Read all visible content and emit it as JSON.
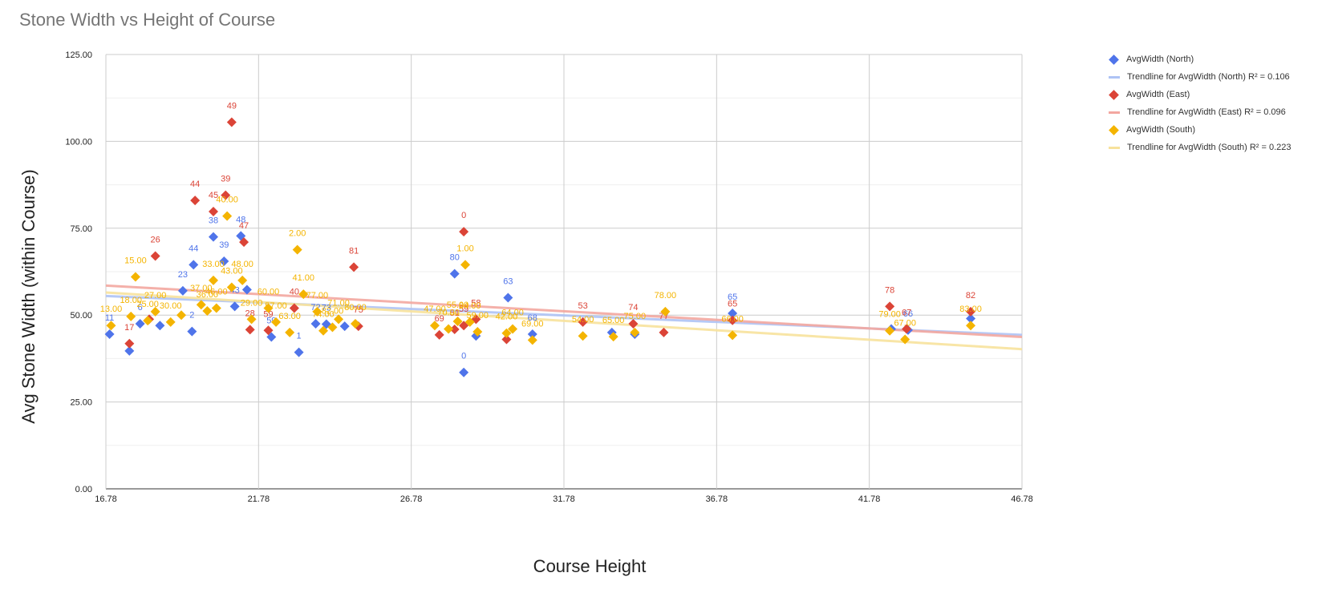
{
  "chart_data": {
    "type": "scatter",
    "title": "Stone Width vs Height of Course",
    "xlabel": "Course Height",
    "ylabel": "Avg Stone Width (within Course)",
    "xlim": [
      16.78,
      46.78
    ],
    "ylim": [
      0,
      125
    ],
    "x_ticks": [
      "16.78",
      "21.78",
      "26.78",
      "31.78",
      "36.78",
      "41.78",
      "46.78"
    ],
    "y_ticks": [
      "0.00",
      "25.00",
      "50.00",
      "75.00",
      "100.00",
      "125.00"
    ],
    "grid": true,
    "legend_position": "right",
    "series": [
      {
        "name": "AvgWidth (North)",
        "color": "#4f74ea",
        "points": [
          {
            "x": 16.9,
            "y": 44.5,
            "label": "11"
          },
          {
            "x": 17.55,
            "y": 39.7,
            "label": ""
          },
          {
            "x": 17.9,
            "y": 47.5,
            "label": "6"
          },
          {
            "x": 18.55,
            "y": 47.0,
            "label": ""
          },
          {
            "x": 19.3,
            "y": 57.0,
            "label": "23"
          },
          {
            "x": 19.6,
            "y": 45.3,
            "label": "2"
          },
          {
            "x": 19.65,
            "y": 64.5,
            "label": "44"
          },
          {
            "x": 20.3,
            "y": 72.5,
            "label": "38"
          },
          {
            "x": 20.65,
            "y": 65.5,
            "label": "39"
          },
          {
            "x": 21.0,
            "y": 52.5,
            "label": "43"
          },
          {
            "x": 21.2,
            "y": 72.8,
            "label": "48"
          },
          {
            "x": 21.4,
            "y": 57.3,
            "label": ""
          },
          {
            "x": 22.2,
            "y": 43.7,
            "label": "59"
          },
          {
            "x": 23.1,
            "y": 39.3,
            "label": "1"
          },
          {
            "x": 23.65,
            "y": 47.5,
            "label": "72"
          },
          {
            "x": 24.0,
            "y": 47.4,
            "label": "73"
          },
          {
            "x": 24.6,
            "y": 46.8,
            "label": ""
          },
          {
            "x": 28.2,
            "y": 61.9,
            "label": "80"
          },
          {
            "x": 28.5,
            "y": 33.5,
            "label": "0"
          },
          {
            "x": 28.9,
            "y": 44.0,
            "label": ""
          },
          {
            "x": 29.95,
            "y": 55.0,
            "label": "63"
          },
          {
            "x": 30.75,
            "y": 44.5,
            "label": "68"
          },
          {
            "x": 33.35,
            "y": 45.0,
            "label": ""
          },
          {
            "x": 34.1,
            "y": 44.5,
            "label": ""
          },
          {
            "x": 37.3,
            "y": 50.5,
            "label": "65"
          },
          {
            "x": 42.5,
            "y": 46.0,
            "label": ""
          },
          {
            "x": 43.05,
            "y": 45.7,
            "label": "66"
          },
          {
            "x": 45.1,
            "y": 49.0,
            "label": ""
          }
        ],
        "trendline": {
          "name": "Trendline for AvgWidth (North) R² = 0.106",
          "color": "#aec3f5",
          "y_at_xmin": 55.5,
          "y_at_xmax": 44.3
        }
      },
      {
        "name": "AvgWidth (East)",
        "color": "#db4437",
        "points": [
          {
            "x": 17.55,
            "y": 41.8,
            "label": "17"
          },
          {
            "x": 18.2,
            "y": 48.8,
            "label": ""
          },
          {
            "x": 18.4,
            "y": 67.0,
            "label": "26"
          },
          {
            "x": 19.7,
            "y": 83.0,
            "label": "44"
          },
          {
            "x": 20.3,
            "y": 79.8,
            "label": "45"
          },
          {
            "x": 20.7,
            "y": 84.5,
            "label": "39"
          },
          {
            "x": 20.9,
            "y": 105.5,
            "label": "49"
          },
          {
            "x": 21.3,
            "y": 71.0,
            "label": "47"
          },
          {
            "x": 21.5,
            "y": 45.8,
            "label": "28"
          },
          {
            "x": 22.1,
            "y": 45.6,
            "label": "59"
          },
          {
            "x": 22.95,
            "y": 52.0,
            "label": "40"
          },
          {
            "x": 24.9,
            "y": 63.8,
            "label": "81"
          },
          {
            "x": 25.05,
            "y": 46.8,
            "label": "75"
          },
          {
            "x": 27.7,
            "y": 44.3,
            "label": "69"
          },
          {
            "x": 28.2,
            "y": 45.9,
            "label": "51"
          },
          {
            "x": 28.5,
            "y": 47.0,
            "label": "59"
          },
          {
            "x": 28.5,
            "y": 74.0,
            "label": "0"
          },
          {
            "x": 28.9,
            "y": 48.8,
            "label": "58"
          },
          {
            "x": 29.9,
            "y": 43.0,
            "label": ""
          },
          {
            "x": 32.4,
            "y": 48.0,
            "label": "53"
          },
          {
            "x": 34.05,
            "y": 47.5,
            "label": "74"
          },
          {
            "x": 35.05,
            "y": 45.0,
            "label": "77"
          },
          {
            "x": 37.3,
            "y": 48.5,
            "label": "65"
          },
          {
            "x": 42.45,
            "y": 52.5,
            "label": "78"
          },
          {
            "x": 43.0,
            "y": 46.0,
            "label": "67"
          },
          {
            "x": 45.1,
            "y": 51.0,
            "label": "82"
          }
        ],
        "trendline": {
          "name": "Trendline for AvgWidth (East) R² = 0.096",
          "color": "#f3a7a0",
          "y_at_xmin": 58.5,
          "y_at_xmax": 43.7
        }
      },
      {
        "name": "AvgWidth (South)",
        "color": "#f4b400",
        "points": [
          {
            "x": 16.95,
            "y": 47.0,
            "label": "13.00"
          },
          {
            "x": 17.6,
            "y": 49.6,
            "label": "18.00"
          },
          {
            "x": 17.75,
            "y": 61.0,
            "label": "15.00"
          },
          {
            "x": 18.15,
            "y": 48.4,
            "label": "25.00"
          },
          {
            "x": 18.4,
            "y": 51.0,
            "label": "27.00"
          },
          {
            "x": 18.9,
            "y": 48.0,
            "label": "30.00"
          },
          {
            "x": 19.25,
            "y": 50.0,
            "label": ""
          },
          {
            "x": 19.9,
            "y": 53.0,
            "label": "37.00"
          },
          {
            "x": 20.1,
            "y": 51.2,
            "label": "36.00"
          },
          {
            "x": 20.3,
            "y": 60.0,
            "label": "33.00"
          },
          {
            "x": 20.4,
            "y": 52.0,
            "label": "46.00"
          },
          {
            "x": 20.75,
            "y": 78.5,
            "label": "40.00"
          },
          {
            "x": 20.9,
            "y": 58.0,
            "label": "43.00"
          },
          {
            "x": 21.25,
            "y": 60.0,
            "label": "48.00"
          },
          {
            "x": 21.55,
            "y": 48.8,
            "label": "29.00"
          },
          {
            "x": 22.1,
            "y": 52.0,
            "label": "60.00"
          },
          {
            "x": 22.35,
            "y": 48.0,
            "label": "57.00"
          },
          {
            "x": 22.8,
            "y": 45.0,
            "label": "63.00"
          },
          {
            "x": 23.05,
            "y": 68.8,
            "label": "2.00"
          },
          {
            "x": 23.25,
            "y": 56.0,
            "label": "41.00"
          },
          {
            "x": 23.7,
            "y": 51.0,
            "label": "77.00"
          },
          {
            "x": 23.9,
            "y": 45.5,
            "label": "74.00"
          },
          {
            "x": 24.2,
            "y": 46.5,
            "label": "82.00"
          },
          {
            "x": 24.4,
            "y": 48.8,
            "label": "71.00"
          },
          {
            "x": 24.95,
            "y": 47.5,
            "label": "80.00"
          },
          {
            "x": 27.55,
            "y": 47.0,
            "label": "47.00"
          },
          {
            "x": 28.0,
            "y": 46.0,
            "label": "70.00"
          },
          {
            "x": 28.3,
            "y": 48.2,
            "label": "55.00"
          },
          {
            "x": 28.55,
            "y": 64.5,
            "label": "1.00"
          },
          {
            "x": 28.7,
            "y": 48.0,
            "label": "84.00"
          },
          {
            "x": 28.95,
            "y": 45.2,
            "label": "59.00"
          },
          {
            "x": 29.9,
            "y": 44.8,
            "label": "42.00"
          },
          {
            "x": 30.1,
            "y": 46.0,
            "label": "64.00"
          },
          {
            "x": 30.75,
            "y": 42.8,
            "label": "69.00"
          },
          {
            "x": 32.4,
            "y": 44.0,
            "label": "54.00"
          },
          {
            "x": 33.4,
            "y": 43.8,
            "label": "65.00"
          },
          {
            "x": 34.1,
            "y": 45.0,
            "label": "75.00"
          },
          {
            "x": 35.1,
            "y": 51.0,
            "label": "78.00"
          },
          {
            "x": 37.3,
            "y": 44.2,
            "label": "66.00"
          },
          {
            "x": 42.45,
            "y": 45.5,
            "label": "79.00"
          },
          {
            "x": 42.95,
            "y": 43.0,
            "label": "67.00"
          },
          {
            "x": 45.1,
            "y": 47.0,
            "label": "83.00"
          }
        ],
        "trendline": {
          "name": "Trendline for AvgWidth (South) R² = 0.223",
          "color": "#f7e29c",
          "y_at_xmin": 56.5,
          "y_at_xmax": 40.2
        }
      }
    ]
  }
}
